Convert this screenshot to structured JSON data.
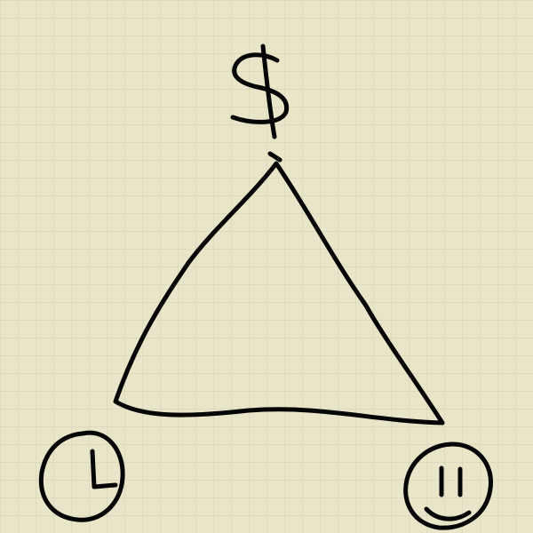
{
  "sketch": {
    "paper": {
      "style": "graph-paper",
      "background_color": "#e9e5c8",
      "grid_color": "#d3cfb2"
    },
    "ink_color": "#060606",
    "triangle": {
      "vertices": [
        "top",
        "bottom-left",
        "bottom-right"
      ]
    },
    "symbols": {
      "top": {
        "icon": "dollar-sign-icon"
      },
      "bottom_left": {
        "icon": "clock-icon"
      },
      "bottom_right": {
        "icon": "smiley-face-icon"
      }
    }
  }
}
